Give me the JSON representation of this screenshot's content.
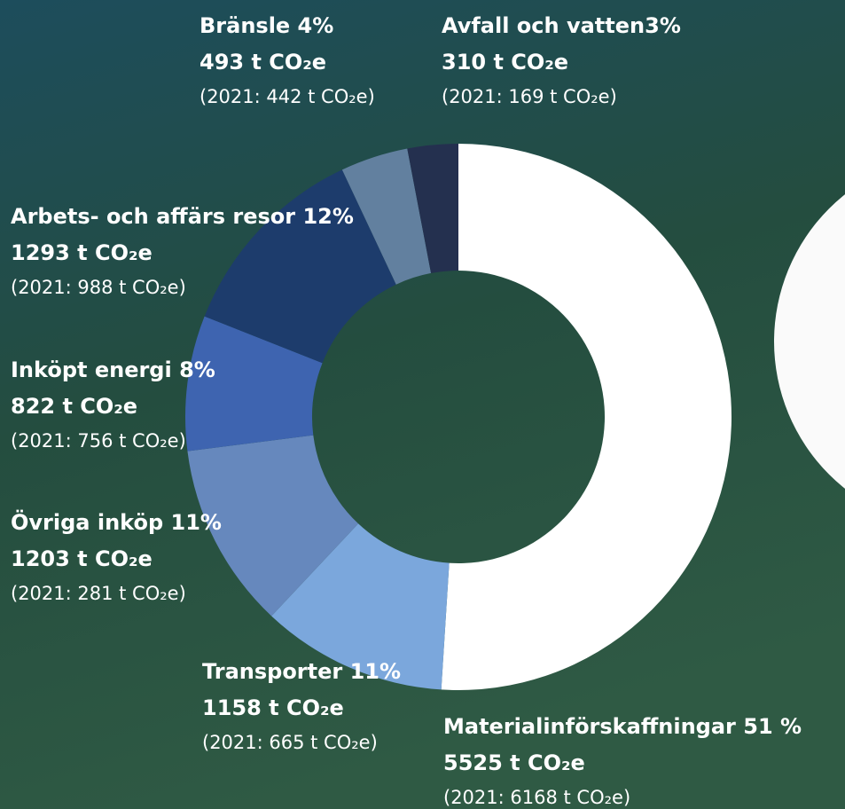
{
  "chart_data": {
    "type": "donut",
    "categories": [
      "Materialinförskaffningar 51 %",
      "Transporter 11%",
      "Övriga inköp 11%",
      "Inköpt energi 8%",
      "Arbets- och affärs resor 12%",
      "Bränsle 4%",
      "Avfall och vatten3%"
    ],
    "values": [
      51,
      11,
      11,
      8,
      12,
      4,
      3
    ],
    "amount_labels": [
      "5525 t CO₂e",
      "1158 t CO₂e",
      "1203 t CO₂e",
      "822 t CO₂e",
      "1293 t CO₂e",
      "493 t CO₂e",
      "310 t CO₂e"
    ],
    "prior_labels": [
      "(2021: 6168 t CO₂e)",
      "(2021: 665 t CO₂e)",
      "(2021: 281 t CO₂e)",
      "(2021: 756 t CO₂e)",
      "(2021: 988 t CO₂e)",
      "(2021: 442 t CO₂e)",
      "(2021: 169 t CO₂e)"
    ],
    "colors": [
      "#ffffff",
      "#7ba7dc",
      "#6688bd",
      "#3e64b0",
      "#1d3c6c",
      "#62809f",
      "#24304f"
    ]
  }
}
